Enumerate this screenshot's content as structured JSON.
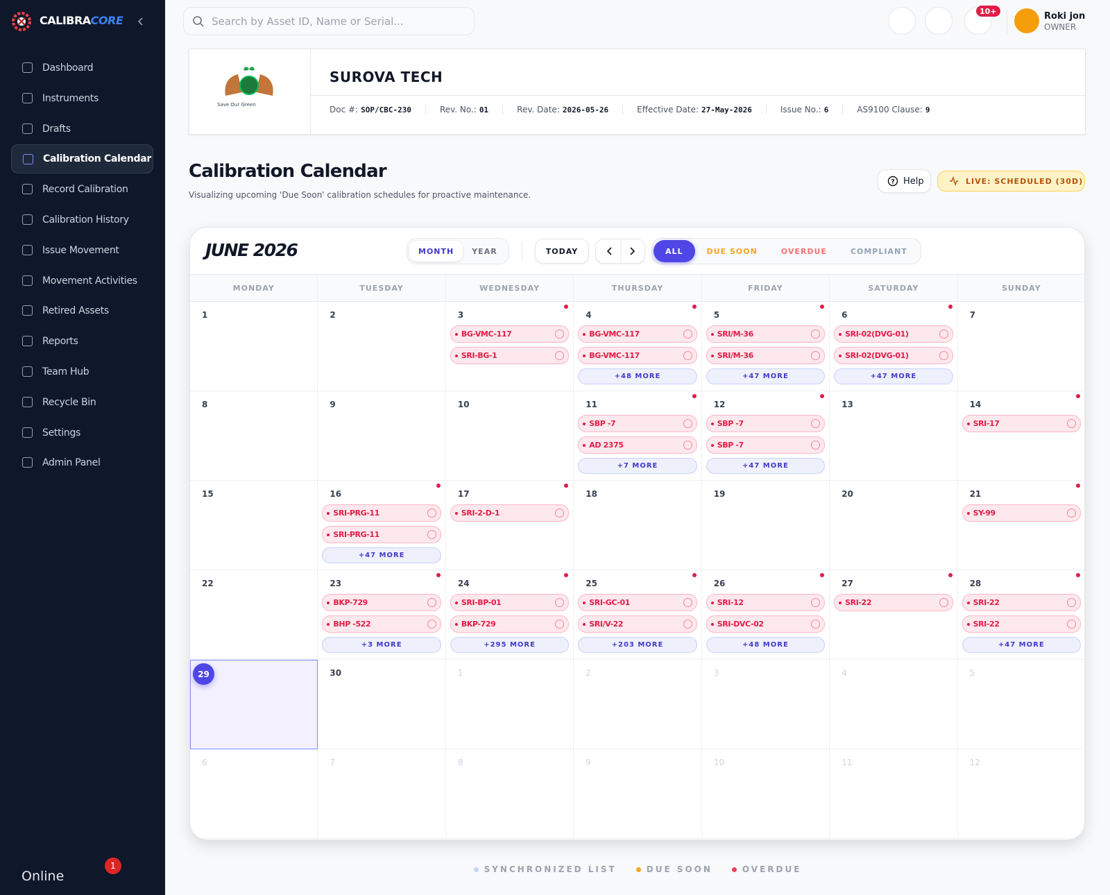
{
  "brand": {
    "name_a": "CALIBRA",
    "name_b": "CORE"
  },
  "search_placeholder": "Search by Asset ID, Name or Serial...",
  "notifications_badge": "10+",
  "user": {
    "name": "Roki jon",
    "role": "OWNER"
  },
  "nav": {
    "items": [
      "Dashboard",
      "Instruments",
      "Drafts",
      "Calibration Calendar",
      "Record Calibration",
      "Calibration History",
      "Issue Movement",
      "Movement Activities",
      "Retired Assets",
      "Reports",
      "Team Hub",
      "Recycle Bin",
      "Settings",
      "Admin Panel"
    ],
    "active_index": 3
  },
  "status": {
    "label": "Online",
    "badge": 1
  },
  "doc_header": {
    "logo_caption": "Save Our Green",
    "company": "SUROVA TECH",
    "fields": [
      {
        "label": "Doc #:",
        "value": "SOP/CBC-230"
      },
      {
        "label": "Rev. No.:",
        "value": "01"
      },
      {
        "label": "Rev. Date:",
        "value": "2026-05-26"
      },
      {
        "label": "Effective Date:",
        "value": "27-May-2026"
      },
      {
        "label": "Issue No.:",
        "value": "6"
      },
      {
        "label": "AS9100 Clause:",
        "value": "9"
      }
    ]
  },
  "page": {
    "title": "Calibration Calendar",
    "subtitle": "Visualizing upcoming 'Due Soon' calibration schedules for proactive maintenance.",
    "help": "Help",
    "live": "LIVE: SCHEDULED (30D)"
  },
  "calendar": {
    "month_label": "JUNE 2026",
    "view_tabs": [
      "MONTH",
      "YEAR"
    ],
    "active_view": 0,
    "today_button": "TODAY",
    "filters": [
      "ALL",
      "DUE SOON",
      "OVERDUE",
      "COMPLIANT"
    ],
    "active_filter": 0,
    "weekdays": [
      "MONDAY",
      "TUESDAY",
      "WEDNESDAY",
      "THURSDAY",
      "FRIDAY",
      "SATURDAY",
      "SUNDAY"
    ],
    "weeks": [
      [
        {
          "day": 1
        },
        {
          "day": 2
        },
        {
          "day": 3,
          "dot": true,
          "items": [
            "BG-VMC-117",
            "SRI-BG-1"
          ]
        },
        {
          "day": 4,
          "dot": true,
          "items": [
            "BG-VMC-117",
            "BG-VMC-117"
          ],
          "more": "+48 MORE"
        },
        {
          "day": 5,
          "dot": true,
          "items": [
            "SRI/M-36",
            "SRI/M-36"
          ],
          "more": "+47 MORE"
        },
        {
          "day": 6,
          "dot": true,
          "items": [
            "SRI-02(DVG-01)",
            "SRI-02(DVG-01)"
          ],
          "more": "+47 MORE"
        },
        {
          "day": 7
        }
      ],
      [
        {
          "day": 8
        },
        {
          "day": 9
        },
        {
          "day": 10
        },
        {
          "day": 11,
          "dot": true,
          "items": [
            "SBP -7",
            "AD 2375"
          ],
          "more": "+7 MORE"
        },
        {
          "day": 12,
          "dot": true,
          "items": [
            "SBP -7",
            "SBP -7"
          ],
          "more": "+47 MORE"
        },
        {
          "day": 13
        },
        {
          "day": 14,
          "dot": true,
          "items": [
            "SRI-17"
          ]
        }
      ],
      [
        {
          "day": 15
        },
        {
          "day": 16,
          "dot": true,
          "items": [
            "SRI-PRG-11",
            "SRI-PRG-11"
          ],
          "more": "+47 MORE"
        },
        {
          "day": 17,
          "dot": true,
          "items": [
            "SRI-2-D-1"
          ]
        },
        {
          "day": 18
        },
        {
          "day": 19
        },
        {
          "day": 20
        },
        {
          "day": 21,
          "dot": true,
          "items": [
            "SY-99"
          ]
        }
      ],
      [
        {
          "day": 22
        },
        {
          "day": 23,
          "dot": true,
          "items": [
            "BKP-729",
            "BHP -522"
          ],
          "more": "+3 MORE"
        },
        {
          "day": 24,
          "dot": true,
          "items": [
            "SRI-BP-01",
            "BKP-729"
          ],
          "more": "+295 MORE"
        },
        {
          "day": 25,
          "dot": true,
          "items": [
            "SRI-GC-01",
            "SRI/V-22"
          ],
          "more": "+203 MORE"
        },
        {
          "day": 26,
          "dot": true,
          "items": [
            "SRI-12",
            "SRI-DVC-02"
          ],
          "more": "+48 MORE"
        },
        {
          "day": 27,
          "dot": true,
          "items": [
            "SRI-22"
          ]
        },
        {
          "day": 28,
          "dot": true,
          "items": [
            "SRI-22",
            "SRI-22"
          ],
          "more": "+47 MORE"
        }
      ],
      [
        {
          "day": 29,
          "today": true
        },
        {
          "day": 30
        },
        {
          "day": 1,
          "muted": true
        },
        {
          "day": 2,
          "muted": true
        },
        {
          "day": 3,
          "muted": true
        },
        {
          "day": 4,
          "muted": true
        },
        {
          "day": 5,
          "muted": true
        }
      ],
      [
        {
          "day": 6,
          "muted": true
        },
        {
          "day": 7,
          "muted": true
        },
        {
          "day": 8,
          "muted": true
        },
        {
          "day": 9,
          "muted": true
        },
        {
          "day": 10,
          "muted": true
        },
        {
          "day": 11,
          "muted": true
        },
        {
          "day": 12,
          "muted": true
        }
      ]
    ]
  },
  "legend": [
    "SYNCHRONIZED LIST",
    "DUE SOON",
    "OVERDUE"
  ]
}
